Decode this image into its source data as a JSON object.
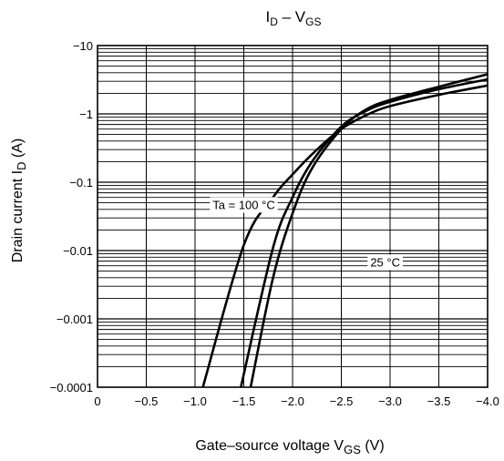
{
  "chart_data": {
    "type": "line",
    "title": {
      "main": "I",
      "main_sub": "D",
      "sep": " – V",
      "sep_sub": "GS"
    },
    "xlabel": {
      "text": "Gate–source voltage   V",
      "sub": "GS",
      "unit": "   (V)"
    },
    "ylabel": {
      "text": "Drain current   I",
      "sub": "D",
      "unit": "   (A)"
    },
    "x_scale": "linear",
    "y_scale": "log",
    "xlim": [
      0,
      -4.0
    ],
    "ylim": [
      -0.0001,
      -10
    ],
    "grid": true,
    "x_ticks": [
      {
        "value": 0,
        "label": "0"
      },
      {
        "value": -0.5,
        "label": "−0.5"
      },
      {
        "value": -1.0,
        "label": "−1.0"
      },
      {
        "value": -1.5,
        "label": "−1.5"
      },
      {
        "value": -2.0,
        "label": "−2.0"
      },
      {
        "value": -2.5,
        "label": "−2.5"
      },
      {
        "value": -3.0,
        "label": "−3.0"
      },
      {
        "value": -3.5,
        "label": "−3.5"
      },
      {
        "value": -4.0,
        "label": "−4.0"
      }
    ],
    "y_ticks": [
      {
        "value": -0.0001,
        "label": "−0.0001"
      },
      {
        "value": -0.001,
        "label": "−0.001"
      },
      {
        "value": -0.01,
        "label": "−0.01"
      },
      {
        "value": -0.1,
        "label": "−0.1"
      },
      {
        "value": -1,
        "label": "−1"
      },
      {
        "value": -10,
        "label": "−10"
      }
    ],
    "series": [
      {
        "name": "Ta = 100 °C",
        "x": [
          -1.08,
          -1.5,
          -1.8,
          -2.0,
          -2.25,
          -2.5,
          -2.75,
          -3.0,
          -3.5,
          -4.0
        ],
        "y": [
          -0.0001,
          -0.012,
          -0.06,
          -0.13,
          -0.3,
          -0.6,
          -0.95,
          -1.3,
          -1.9,
          -2.6
        ]
      },
      {
        "name": "25 °C",
        "x": [
          -1.47,
          -1.8,
          -2.0,
          -2.2,
          -2.5,
          -2.75,
          -3.0,
          -3.5,
          -4.0
        ],
        "y": [
          -0.0001,
          -0.011,
          -0.06,
          -0.2,
          -0.65,
          -1.1,
          -1.5,
          -2.3,
          -3.2
        ]
      },
      {
        "name": "",
        "x": [
          -1.57,
          -1.8,
          -2.0,
          -2.2,
          -2.5,
          -2.75,
          -3.0,
          -3.5,
          -4.0
        ],
        "y": [
          -0.0001,
          -0.004,
          -0.035,
          -0.16,
          -0.6,
          -1.15,
          -1.6,
          -2.5,
          -3.8
        ]
      }
    ],
    "annotations": [
      {
        "text": "Ta = 100 °C",
        "x": -1.5,
        "y": -0.045
      },
      {
        "text": "25 °C",
        "x": -2.95,
        "y": -0.0065
      }
    ]
  }
}
